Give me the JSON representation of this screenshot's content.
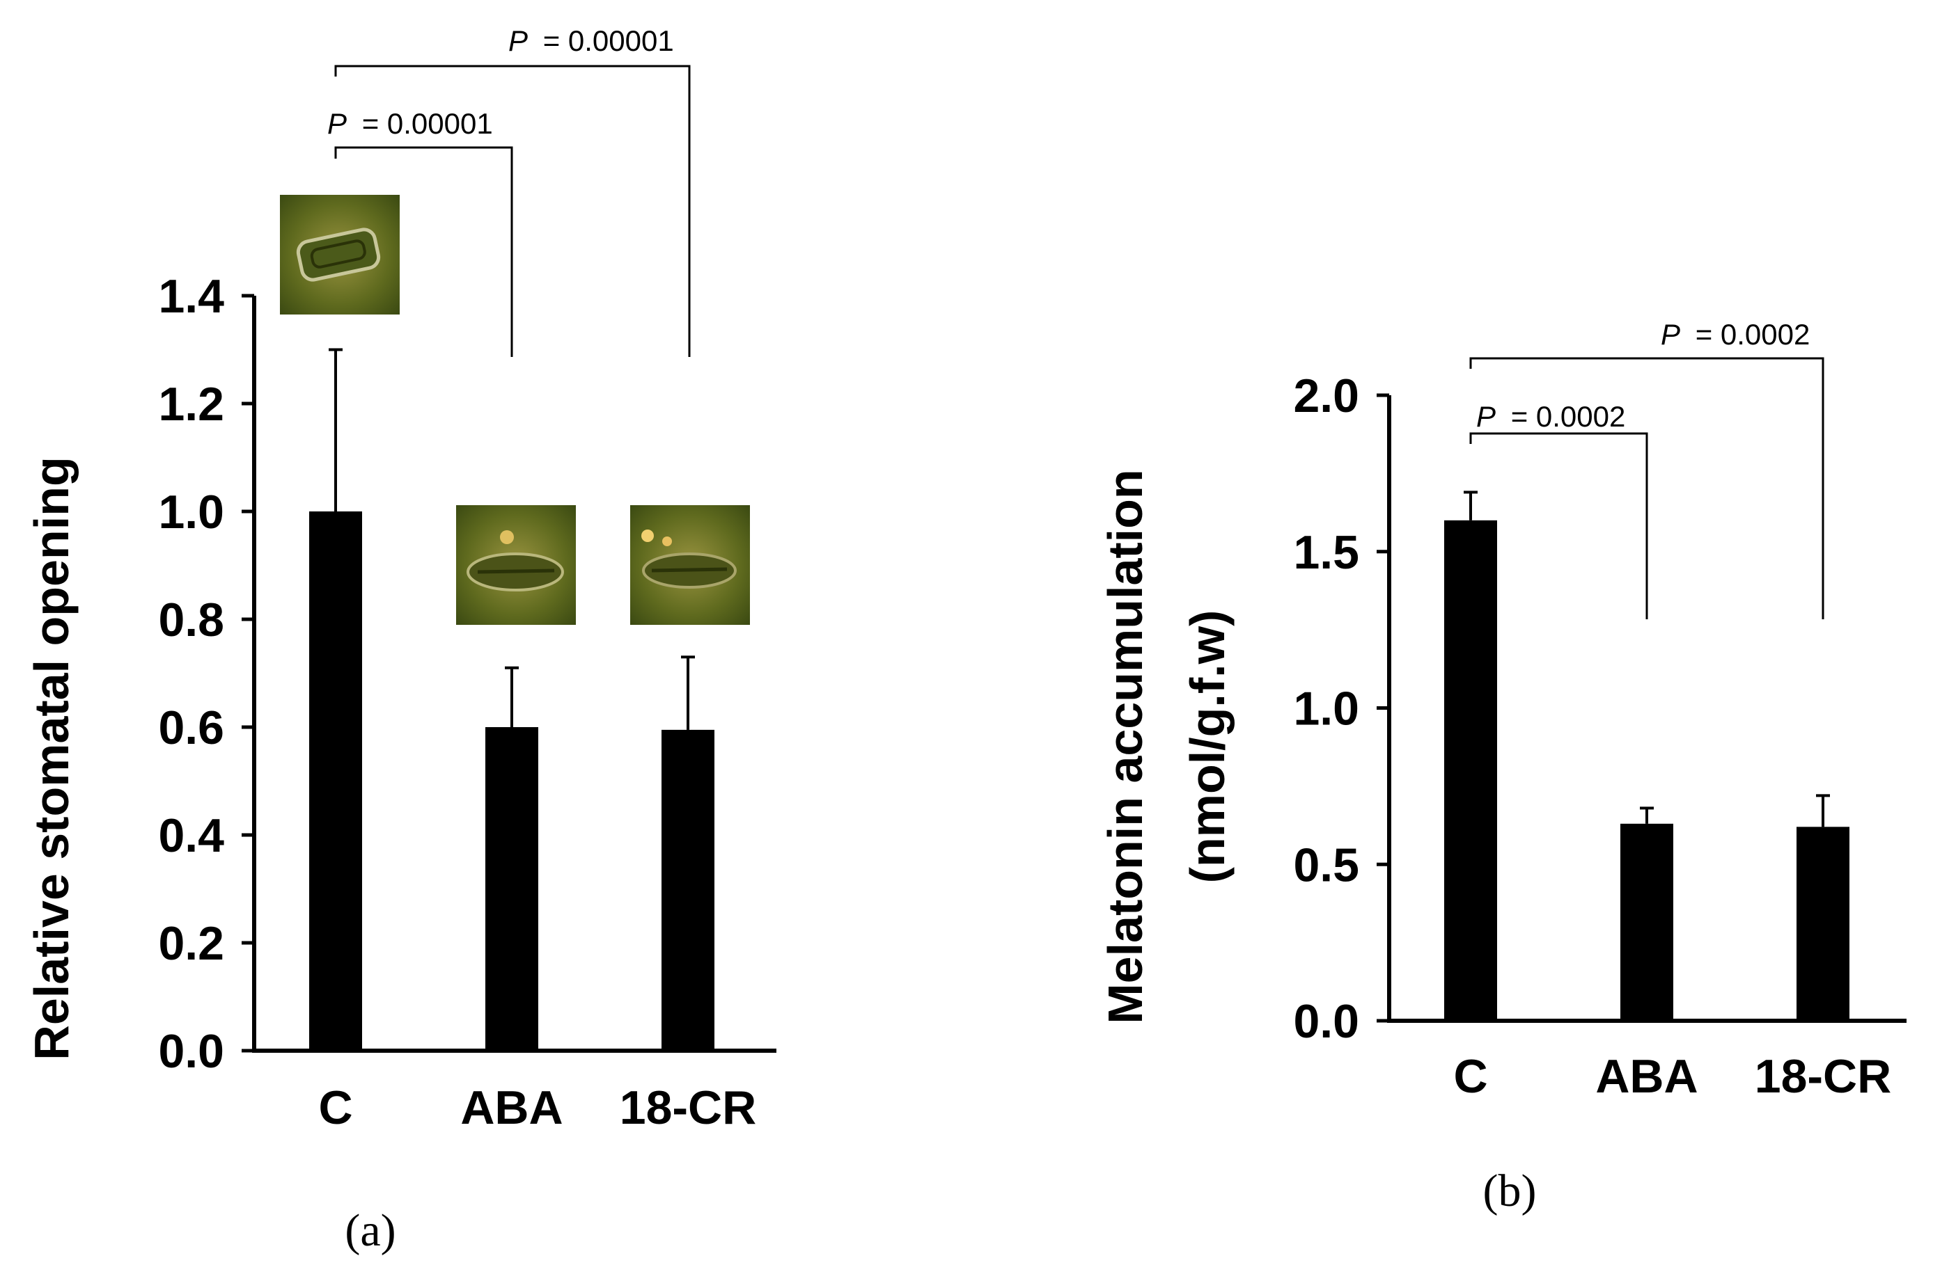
{
  "chart_data": [
    {
      "panel": "(a)",
      "type": "bar",
      "categories": [
        "C",
        "ABA",
        "18-CR"
      ],
      "values": [
        1.0,
        0.6,
        0.595
      ],
      "errors": [
        0.3,
        0.11,
        0.135
      ],
      "ylabel": "Relative stomatal opening",
      "ylim": [
        0,
        1.4
      ],
      "yticks": [
        "0.0",
        "0.2",
        "0.4",
        "0.6",
        "0.8",
        "1.0",
        "1.2",
        "1.4"
      ],
      "comparisons": [
        {
          "from": "C",
          "to": "ABA",
          "p_letter": "P",
          "p_value": "= 0.00001"
        },
        {
          "from": "C",
          "to": "18-CR",
          "p_letter": "P",
          "p_value": "= 0.00001"
        }
      ],
      "images": [
        "open-stomata-photo",
        "closed-stomata-photo-aba",
        "closed-stomata-photo-18cr"
      ]
    },
    {
      "panel": "(b)",
      "type": "bar",
      "categories": [
        "C",
        "ABA",
        "18-CR"
      ],
      "values": [
        1.6,
        0.63,
        0.62
      ],
      "errors": [
        0.09,
        0.05,
        0.1
      ],
      "ylabel_line1": "Melatonin  accumulation",
      "ylabel_line2": "(nmol/g.f.w)",
      "ylim": [
        0,
        2.0
      ],
      "yticks": [
        "0.0",
        "0.5",
        "1.0",
        "1.5",
        "2.0"
      ],
      "comparisons": [
        {
          "from": "C",
          "to": "ABA",
          "p_letter": "P",
          "p_value": "= 0.0002"
        },
        {
          "from": "C",
          "to": "18-CR",
          "p_letter": "P",
          "p_value": "= 0.0002"
        }
      ]
    }
  ],
  "colors": {
    "bar": "#000000",
    "photo_dark": "#3b4a12",
    "photo_light": "#8a8a36"
  }
}
